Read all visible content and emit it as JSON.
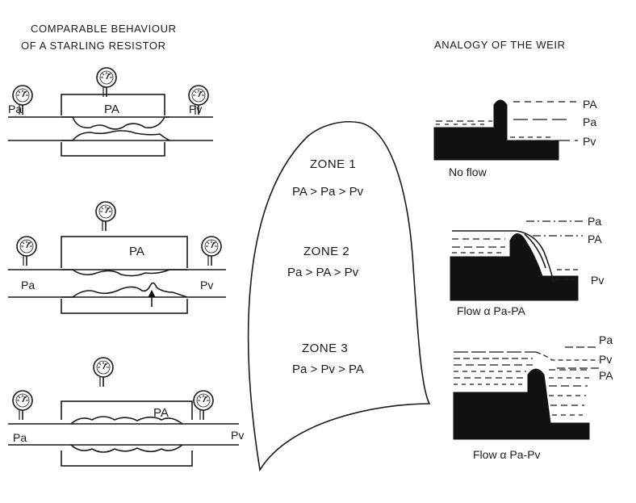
{
  "left": {
    "heading_line1": "COMPARABLE BEHAVIOUR",
    "heading_line2": "OF A STARLING RESISTOR",
    "resistors": [
      {
        "chamber": "PA",
        "inlet": "Pa",
        "outlet": "Pv"
      },
      {
        "chamber": "PA",
        "inlet": "Pa",
        "outlet": "Pv"
      },
      {
        "chamber": "PA",
        "inlet": "Pa",
        "outlet": "Pv"
      }
    ]
  },
  "center": {
    "zones": [
      {
        "title": "ZONE 1",
        "relation": "PA > Pa > Pv"
      },
      {
        "title": "ZONE 2",
        "relation": "Pa > PA > Pv"
      },
      {
        "title": "ZONE 3",
        "relation": "Pa > Pv > PA"
      }
    ]
  },
  "right": {
    "heading": "ANALOGY OF THE WEIR",
    "weirs": [
      {
        "levels": [
          "PA",
          "Pa",
          "Pv"
        ],
        "caption": "No flow"
      },
      {
        "levels": [
          "Pa",
          "PA",
          "Pv"
        ],
        "caption": "Flow α Pa-PA"
      },
      {
        "levels": [
          "Pa",
          "Pv",
          "PA"
        ],
        "caption": "Flow α Pa-Pv"
      }
    ]
  }
}
